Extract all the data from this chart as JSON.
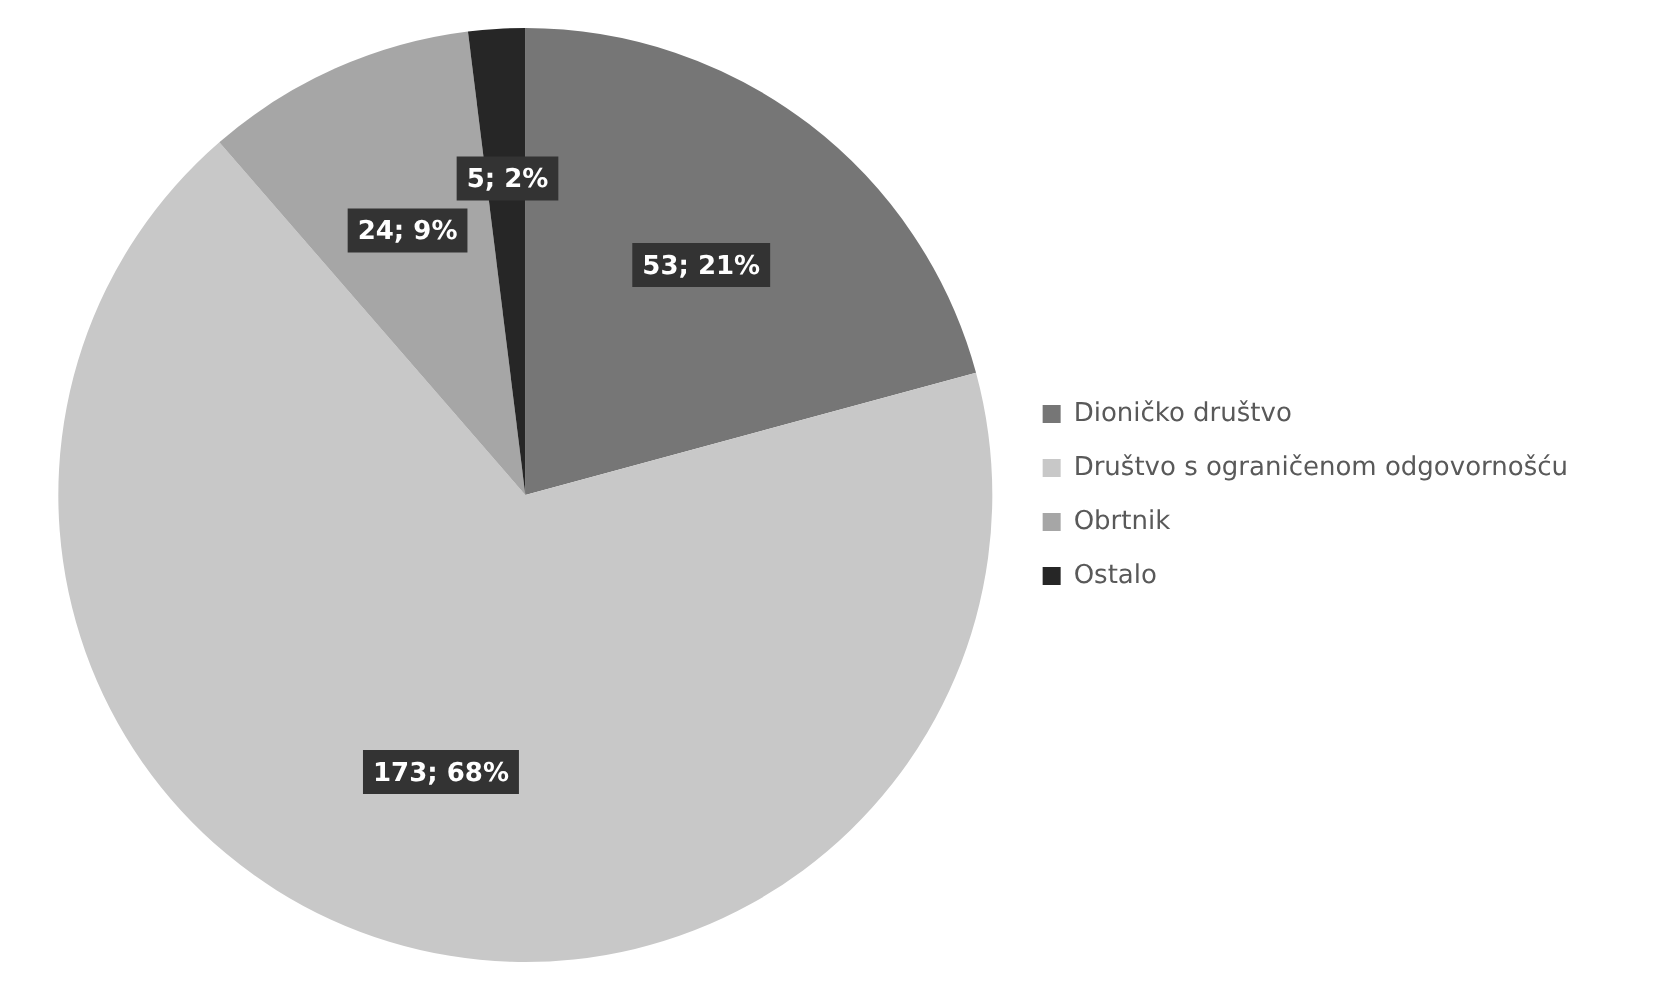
{
  "chart_data": {
    "type": "pie",
    "categories": [
      "Dioničko društvo",
      "Društvo s ograničenom odgovornošću",
      "Obrtnik",
      "Ostalo"
    ],
    "values": [
      53,
      173,
      24,
      5
    ],
    "colors": [
      "#767676",
      "#c8c8c8",
      "#a6a6a6",
      "#262626"
    ],
    "value_labels": [
      "53; 21%",
      "173; 68%",
      "24; 9%",
      "5; 2%"
    ],
    "legend": "right"
  }
}
